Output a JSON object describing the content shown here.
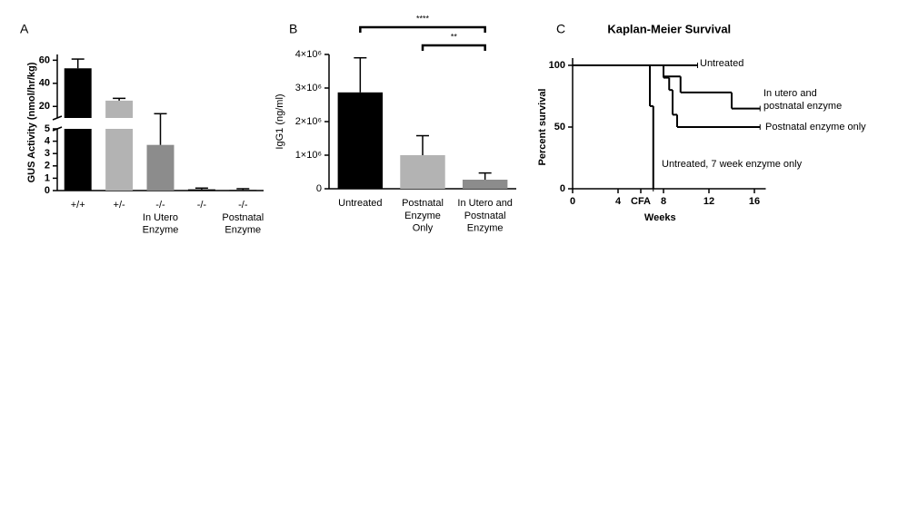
{
  "chart_data": [
    {
      "type": "bar",
      "panel_label": "A",
      "ylabel": "GUS Activity (nmol/hr/kg)",
      "categories": [
        "+/+",
        "+/-",
        "-/-\nIn Utero\nEnzyme",
        "-/-",
        "-/-\nPostnatal\nEnzyme"
      ],
      "values": [
        53,
        25,
        3.7,
        0.1,
        0.05
      ],
      "errors": [
        8,
        2,
        10,
        0.1,
        0.1
      ],
      "colors": [
        "#000000",
        "#b3b3b3",
        "#8c8c8c",
        "#000000",
        "#000000"
      ],
      "ylim": [
        0,
        65
      ],
      "axis_break": [
        5,
        10
      ],
      "yticks": [
        0,
        1,
        2,
        3,
        4,
        5,
        20,
        40,
        60
      ]
    },
    {
      "type": "bar",
      "panel_label": "B",
      "ylabel": "IgG1 (ng/ml)",
      "categories": [
        "Untreated",
        "Postnatal\nEnzyme\nOnly",
        "In Utero and\nPostnatal\nEnzyme"
      ],
      "values": [
        2870000,
        1000000,
        270000
      ],
      "errors": [
        1030000,
        580000,
        200000
      ],
      "colors": [
        "#000000",
        "#b3b3b3",
        "#8c8c8c"
      ],
      "ylim": [
        0,
        4000000
      ],
      "yticks": [
        0,
        {
          "value": 1000000,
          "label": "1×10⁶"
        },
        {
          "value": 2000000,
          "label": "2×10⁶"
        },
        {
          "value": 3000000,
          "label": "3×10⁶"
        },
        {
          "value": 4000000,
          "label": "4×10⁶"
        }
      ],
      "comparisons": [
        {
          "label": "****",
          "groups": [
            0,
            2
          ]
        },
        {
          "label": "**",
          "groups": [
            1,
            2
          ]
        }
      ]
    },
    {
      "type": "step",
      "panel_label": "C",
      "title": "Kaplan-Meier Survival",
      "xlabel": "Weeks",
      "ylabel": "Percent survival",
      "xlim": [
        0,
        17
      ],
      "ylim": [
        0,
        100
      ],
      "xticks": [
        0,
        4,
        {
          "value": 6,
          "label": "CFA"
        },
        8,
        12,
        16
      ],
      "yticks": [
        0,
        50,
        100
      ],
      "series": [
        {
          "name": "Untreated",
          "color": "#000000",
          "x": [
            0,
            11
          ],
          "values": [
            100,
            100
          ]
        },
        {
          "name": "In utero and\npostnatal enzyme",
          "color": "#000000",
          "x": [
            0,
            8,
            9.5,
            14,
            16.5
          ],
          "values": [
            100,
            91,
            78,
            65,
            65
          ]
        },
        {
          "name": "Postnatal enzyme only",
          "color": "#000000",
          "x": [
            0,
            8,
            8.5,
            8.8,
            9.2,
            16.5
          ],
          "values": [
            100,
            90,
            80,
            60,
            50,
            50
          ]
        },
        {
          "name": "Untreated, 7 week enzyme only",
          "color": "#000000",
          "x": [
            0,
            6.8,
            7.1
          ],
          "values": [
            100,
            67,
            0
          ]
        }
      ]
    }
  ]
}
